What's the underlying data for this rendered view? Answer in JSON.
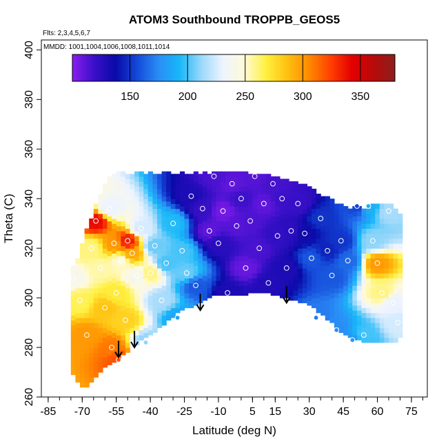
{
  "chart_data": {
    "type": "heatmap",
    "title": "ATOM3 Southbound TROPPB_GEOS5",
    "flights_note": "Flts: 2,3,4,5,6,7",
    "dates_note": "MMDD: 1001,1004,1006,1008,1011,1014",
    "xlabel": "Latitude (deg N)",
    "ylabel": "Theta (C)",
    "xlim": [
      -88,
      82
    ],
    "ylim": [
      260,
      404
    ],
    "xticks": [
      -85,
      -70,
      -55,
      -40,
      -25,
      -10,
      5,
      15,
      30,
      45,
      60,
      75
    ],
    "xtick_labels": [
      "-85",
      "-70",
      "-55",
      "-40",
      "-25",
      "-10",
      "5",
      "15",
      "30",
      "45",
      "60",
      "75"
    ],
    "yticks": [
      260,
      280,
      300,
      320,
      340,
      360,
      380,
      400
    ],
    "ytick_labels": [
      "260",
      "280",
      "300",
      "320",
      "340",
      "360",
      "380",
      "400"
    ],
    "colorbar": {
      "range": [
        100,
        380
      ],
      "ticks": [
        150,
        200,
        250,
        300,
        350
      ],
      "tick_labels": [
        "150",
        "200",
        "250",
        "300",
        "350"
      ],
      "colors": [
        "#8a1df0",
        "#3a10c8",
        "#0a0aa8",
        "#1448d8",
        "#2a8cf6",
        "#18b8f8",
        "#9cd8fa",
        "#eef4ff",
        "#fffad8",
        "#fff040",
        "#ffc010",
        "#ff8a00",
        "#ff4000",
        "#e40000",
        "#b80a0a",
        "#8c1e1e"
      ]
    },
    "columns": [
      {
        "lat": -75,
        "bottom": 271,
        "top": 310
      },
      {
        "lat": -72,
        "bottom": 266,
        "top": 316
      },
      {
        "lat": -69,
        "bottom": 263,
        "top": 324
      },
      {
        "lat": -66,
        "bottom": 266,
        "top": 332
      },
      {
        "lat": -63,
        "bottom": 270,
        "top": 340
      },
      {
        "lat": -60,
        "bottom": 272,
        "top": 346
      },
      {
        "lat": -56,
        "bottom": 274,
        "top": 350
      },
      {
        "lat": -52,
        "bottom": 277,
        "top": 350
      },
      {
        "lat": -48,
        "bottom": 280,
        "top": 350
      },
      {
        "lat": -44,
        "bottom": 283,
        "top": 350
      },
      {
        "lat": -40,
        "bottom": 285,
        "top": 350
      },
      {
        "lat": -36,
        "bottom": 288,
        "top": 350
      },
      {
        "lat": -32,
        "bottom": 291,
        "top": 350
      },
      {
        "lat": -28,
        "bottom": 294,
        "top": 350
      },
      {
        "lat": -24,
        "bottom": 296,
        "top": 350
      },
      {
        "lat": -20,
        "bottom": 297,
        "top": 350
      },
      {
        "lat": -16,
        "bottom": 299,
        "top": 350
      },
      {
        "lat": -12,
        "bottom": 301,
        "top": 350
      },
      {
        "lat": -8,
        "bottom": 301,
        "top": 350
      },
      {
        "lat": -4,
        "bottom": 301,
        "top": 350
      },
      {
        "lat": 0,
        "bottom": 301,
        "top": 350
      },
      {
        "lat": 4,
        "bottom": 302,
        "top": 350
      },
      {
        "lat": 8,
        "bottom": 302,
        "top": 350
      },
      {
        "lat": 12,
        "bottom": 302,
        "top": 349
      },
      {
        "lat": 16,
        "bottom": 301,
        "top": 348
      },
      {
        "lat": 20,
        "bottom": 300,
        "top": 347
      },
      {
        "lat": 24,
        "bottom": 299,
        "top": 346
      },
      {
        "lat": 28,
        "bottom": 298,
        "top": 345
      },
      {
        "lat": 32,
        "bottom": 296,
        "top": 343
      },
      {
        "lat": 36,
        "bottom": 293,
        "top": 341
      },
      {
        "lat": 40,
        "bottom": 290,
        "top": 339
      },
      {
        "lat": 44,
        "bottom": 286,
        "top": 337
      },
      {
        "lat": 48,
        "bottom": 284,
        "top": 336
      },
      {
        "lat": 52,
        "bottom": 283,
        "top": 336
      },
      {
        "lat": 56,
        "bottom": 282,
        "top": 336
      },
      {
        "lat": 60,
        "bottom": 282,
        "top": 337
      },
      {
        "lat": 64,
        "bottom": 282,
        "top": 338
      },
      {
        "lat": 67,
        "bottom": 282,
        "top": 337
      },
      {
        "lat": 70,
        "bottom": 284,
        "top": 334
      }
    ],
    "tropopause_arrows": [
      {
        "lat": -54,
        "theta": 276
      },
      {
        "lat": -47,
        "theta": 280
      },
      {
        "lat": -18,
        "theta": 295
      },
      {
        "lat": 20,
        "theta": 298
      }
    ],
    "observations": [
      {
        "lat": -74,
        "theta": 308,
        "value": 240
      },
      {
        "lat": -71,
        "theta": 299,
        "value": 265
      },
      {
        "lat": -68,
        "theta": 285,
        "value": 300
      },
      {
        "lat": -66,
        "theta": 320,
        "value": 260
      },
      {
        "lat": -64,
        "theta": 331,
        "value": 340
      },
      {
        "lat": -62,
        "theta": 312,
        "value": 255
      },
      {
        "lat": -60,
        "theta": 296,
        "value": 285
      },
      {
        "lat": -58,
        "theta": 336,
        "value": 230
      },
      {
        "lat": -57,
        "theta": 280,
        "value": 310
      },
      {
        "lat": -56,
        "theta": 322,
        "value": 300
      },
      {
        "lat": -55,
        "theta": 302,
        "value": 270
      },
      {
        "lat": -54,
        "theta": 275,
        "value": 320
      },
      {
        "lat": -53,
        "theta": 315,
        "value": 250
      },
      {
        "lat": -51,
        "theta": 291,
        "value": 280
      },
      {
        "lat": -50,
        "theta": 323,
        "value": 335
      },
      {
        "lat": -48,
        "theta": 318,
        "value": 295
      },
      {
        "lat": -46,
        "theta": 309,
        "value": 240
      },
      {
        "lat": -44,
        "theta": 328,
        "value": 225
      },
      {
        "lat": -42,
        "theta": 282,
        "value": 210
      },
      {
        "lat": -40,
        "theta": 310,
        "value": 260
      },
      {
        "lat": -38,
        "theta": 321,
        "value": 205
      },
      {
        "lat": -35,
        "theta": 299,
        "value": 215
      },
      {
        "lat": -33,
        "theta": 314,
        "value": 200
      },
      {
        "lat": -30,
        "theta": 330,
        "value": 195
      },
      {
        "lat": -28,
        "theta": 292,
        "value": 185
      },
      {
        "lat": -26,
        "theta": 319,
        "value": 200
      },
      {
        "lat": -24,
        "theta": 310,
        "value": 205
      },
      {
        "lat": -22,
        "theta": 341,
        "value": 130
      },
      {
        "lat": -20,
        "theta": 305,
        "value": 160
      },
      {
        "lat": -17,
        "theta": 336,
        "value": 120
      },
      {
        "lat": -14,
        "theta": 327,
        "value": 110
      },
      {
        "lat": -12,
        "theta": 349,
        "value": 115
      },
      {
        "lat": -10,
        "theta": 322,
        "value": 125
      },
      {
        "lat": -8,
        "theta": 335,
        "value": 105
      },
      {
        "lat": -6,
        "theta": 302,
        "value": 130
      },
      {
        "lat": -4,
        "theta": 346,
        "value": 110
      },
      {
        "lat": -2,
        "theta": 329,
        "value": 112
      },
      {
        "lat": 0,
        "theta": 340,
        "value": 118
      },
      {
        "lat": 2,
        "theta": 312,
        "value": 108
      },
      {
        "lat": 4,
        "theta": 331,
        "value": 114
      },
      {
        "lat": 6,
        "theta": 349,
        "value": 112
      },
      {
        "lat": 8,
        "theta": 320,
        "value": 115
      },
      {
        "lat": 10,
        "theta": 338,
        "value": 110
      },
      {
        "lat": 12,
        "theta": 306,
        "value": 128
      },
      {
        "lat": 14,
        "theta": 346,
        "value": 116
      },
      {
        "lat": 16,
        "theta": 325,
        "value": 122
      },
      {
        "lat": 18,
        "theta": 340,
        "value": 118
      },
      {
        "lat": 20,
        "theta": 312,
        "value": 130
      },
      {
        "lat": 22,
        "theta": 327,
        "value": 124
      },
      {
        "lat": 25,
        "theta": 338,
        "value": 120
      },
      {
        "lat": 28,
        "theta": 326,
        "value": 135
      },
      {
        "lat": 31,
        "theta": 316,
        "value": 160
      },
      {
        "lat": 33,
        "theta": 292,
        "value": 170
      },
      {
        "lat": 35,
        "theta": 332,
        "value": 150
      },
      {
        "lat": 38,
        "theta": 319,
        "value": 145
      },
      {
        "lat": 40,
        "theta": 309,
        "value": 160
      },
      {
        "lat": 42,
        "theta": 287,
        "value": 175
      },
      {
        "lat": 44,
        "theta": 323,
        "value": 150
      },
      {
        "lat": 47,
        "theta": 315,
        "value": 165
      },
      {
        "lat": 49,
        "theta": 283,
        "value": 180
      },
      {
        "lat": 51,
        "theta": 337,
        "value": 155
      },
      {
        "lat": 54,
        "theta": 285,
        "value": 200
      },
      {
        "lat": 56,
        "theta": 337,
        "value": 190
      },
      {
        "lat": 58,
        "theta": 323,
        "value": 210
      },
      {
        "lat": 60,
        "theta": 314,
        "value": 300
      },
      {
        "lat": 62,
        "theta": 302,
        "value": 260
      },
      {
        "lat": 65,
        "theta": 335,
        "value": 215
      },
      {
        "lat": 67,
        "theta": 298,
        "value": 230
      },
      {
        "lat": 69,
        "theta": 290,
        "value": 225
      }
    ]
  }
}
